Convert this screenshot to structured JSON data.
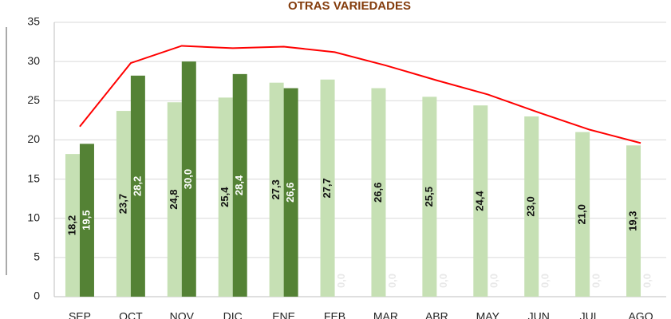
{
  "chart_data": {
    "type": "bar",
    "title": "OTRAS VARIEDADES",
    "categories": [
      "SEP",
      "OCT",
      "NOV",
      "DIC",
      "ENE",
      "FEB",
      "MAR",
      "ABR",
      "MAY",
      "JUN",
      "JUL",
      "AGO"
    ],
    "series": [
      {
        "color": "#c6e0b4",
        "values": [
          18.2,
          23.7,
          24.8,
          25.4,
          27.3,
          27.7,
          26.6,
          25.5,
          24.4,
          23.0,
          21.0,
          19.3
        ],
        "value_labels": [
          "18,2",
          "23,7",
          "24,8",
          "25,4",
          "27,3",
          "27,7",
          "26,6",
          "25,5",
          "24,4",
          "23,0",
          "21,0",
          "19,3"
        ]
      },
      {
        "color": "#548235",
        "values": [
          19.5,
          28.2,
          30.0,
          28.4,
          26.6,
          0,
          0,
          0,
          0,
          0,
          0,
          0
        ],
        "value_labels": [
          "19,5",
          "28,2",
          "30,0",
          "28,4",
          "26,6",
          "0,0",
          "0,0",
          "0,0",
          "0,0",
          "0,0",
          "0,0",
          "0,0"
        ]
      },
      {
        "type": "line",
        "color": "#ff0000",
        "values": [
          21.7,
          29.8,
          32.0,
          31.7,
          31.9,
          31.2,
          29.5,
          27.6,
          25.8,
          23.5,
          21.3,
          19.6
        ]
      }
    ],
    "ylim": [
      0,
      35
    ],
    "yticks": [
      0,
      5,
      10,
      15,
      20,
      25,
      30,
      35
    ],
    "grid": true
  }
}
